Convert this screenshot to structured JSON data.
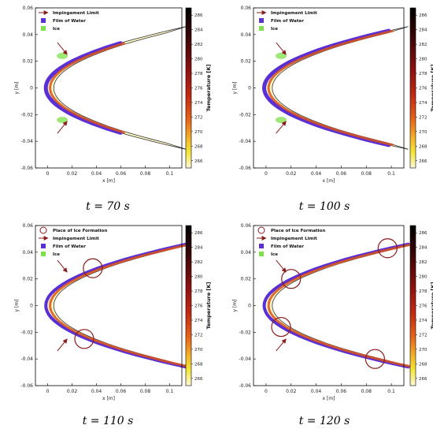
{
  "chart_data": [
    {
      "type": "heatmap",
      "caption": "t = 70 s",
      "xlabel": "x [m]",
      "ylabel": "y [m]",
      "xlim": [
        -0.01,
        0.11
      ],
      "ylim": [
        -0.06,
        0.06
      ],
      "xticks": [
        "0",
        "0.02",
        "0.04",
        "0.06",
        "0.08",
        "0.1"
      ],
      "yticks": [
        "0.06",
        "0.04",
        "0.02",
        "0",
        "-0.02",
        "-0.04",
        "-0.06"
      ],
      "colorbar": {
        "label": "Temperature [K]",
        "min": 265,
        "max": 287,
        "ticks": [
          "286",
          "284",
          "282",
          "280",
          "278",
          "276",
          "274",
          "272",
          "270",
          "268",
          "266"
        ]
      },
      "legend": {
        "placement": "top-left",
        "entries": [
          {
            "label": "Impingement Limit",
            "marker": "arrow",
            "color": "#8b1a1a"
          },
          {
            "label": "Film of Water",
            "marker": "square",
            "color": "#5a2fd6"
          },
          {
            "label": "Ice",
            "marker": "square",
            "color": "#7ee04a"
          }
        ]
      },
      "water_extent": 0.006,
      "ice_extent": 0.02,
      "impingement_limit_x": 0.016
    },
    {
      "type": "heatmap",
      "caption": "t = 100 s",
      "xlabel": "x [m]",
      "ylabel": "y [m]",
      "xlim": [
        -0.01,
        0.11
      ],
      "ylim": [
        -0.06,
        0.06
      ],
      "xticks": [
        "0",
        "0.02",
        "0.04",
        "0.06",
        "0.08",
        "0.1"
      ],
      "yticks": [
        "0.06",
        "0.04",
        "0.02",
        "0",
        "-0.02",
        "-0.04",
        "-0.06"
      ],
      "colorbar": {
        "label": "Temperature [K]",
        "min": 265,
        "max": 287,
        "ticks": [
          "286",
          "284",
          "282",
          "280",
          "278",
          "276",
          "274",
          "272",
          "270",
          "268",
          "266"
        ]
      },
      "legend": {
        "placement": "top-left",
        "entries": [
          {
            "label": "Impingement Limit",
            "marker": "arrow",
            "color": "#8b1a1a"
          },
          {
            "label": "Film of Water",
            "marker": "square",
            "color": "#5a2fd6"
          },
          {
            "label": "Ice",
            "marker": "square",
            "color": "#7ee04a"
          }
        ]
      },
      "water_extent": 0.008,
      "ice_extent": 0.02,
      "impingement_limit_x": 0.016
    },
    {
      "type": "heatmap",
      "caption": "t = 110 s",
      "xlabel": "x [m]",
      "ylabel": "y [m]",
      "xlim": [
        -0.01,
        0.11
      ],
      "ylim": [
        -0.06,
        0.06
      ],
      "xticks": [
        "0",
        "0.02",
        "0.04",
        "0.06",
        "0.08",
        "0.1"
      ],
      "yticks": [
        "0.06",
        "0.04",
        "0.02",
        "0",
        "-0.02",
        "-0.04",
        "-0.06"
      ],
      "colorbar": {
        "label": "Temperature [K]",
        "min": 265,
        "max": 287,
        "ticks": [
          "286",
          "284",
          "282",
          "280",
          "278",
          "276",
          "274",
          "272",
          "270",
          "268",
          "266"
        ]
      },
      "legend": {
        "placement": "top-left",
        "entries": [
          {
            "label": "Place of Ice Formation",
            "marker": "circle",
            "color": "#8b1a1a"
          },
          {
            "label": "Impingement Limit",
            "marker": "arrow",
            "color": "#8b1a1a"
          },
          {
            "label": "Film of Water",
            "marker": "square",
            "color": "#5a2fd6"
          },
          {
            "label": "Ice",
            "marker": "square",
            "color": "#7ee04a"
          }
        ]
      },
      "water_extent": 0.03,
      "ice_extent": 0.036,
      "impingement_limit_x": 0.016,
      "ice_formation_places": [
        {
          "x": 0.037,
          "y": 0.028
        },
        {
          "x": 0.03,
          "y": -0.025
        }
      ]
    },
    {
      "type": "heatmap",
      "caption": "t = 120 s",
      "xlabel": "x [m]",
      "ylabel": "y [m]",
      "xlim": [
        -0.01,
        0.11
      ],
      "ylim": [
        -0.06,
        0.06
      ],
      "xticks": [
        "0",
        "0.02",
        "0.04",
        "0.06",
        "0.08",
        "0.1"
      ],
      "yticks": [
        "0.06",
        "0.04",
        "0.02",
        "0",
        "-0.02",
        "-0.04",
        "-0.06"
      ],
      "colorbar": {
        "label": "Temperature [K]",
        "min": 265,
        "max": 287,
        "ticks": [
          "286",
          "284",
          "282",
          "280",
          "278",
          "276",
          "274",
          "272",
          "270",
          "268",
          "266"
        ]
      },
      "legend": {
        "placement": "top-left",
        "entries": [
          {
            "label": "Place of Ice Formation",
            "marker": "circle",
            "color": "#8b1a1a"
          },
          {
            "label": "Impingement Limit",
            "marker": "arrow",
            "color": "#8b1a1a"
          },
          {
            "label": "Film of Water",
            "marker": "square",
            "color": "#5a2fd6"
          },
          {
            "label": "Ice",
            "marker": "square",
            "color": "#7ee04a"
          }
        ]
      },
      "water_extent": 0.1,
      "ice_extent": 0.1,
      "impingement_limit_x": 0.016,
      "ice_formation_places": [
        {
          "x": 0.02,
          "y": 0.02
        },
        {
          "x": 0.097,
          "y": 0.043
        },
        {
          "x": 0.012,
          "y": -0.016
        },
        {
          "x": 0.087,
          "y": -0.04
        }
      ]
    }
  ]
}
